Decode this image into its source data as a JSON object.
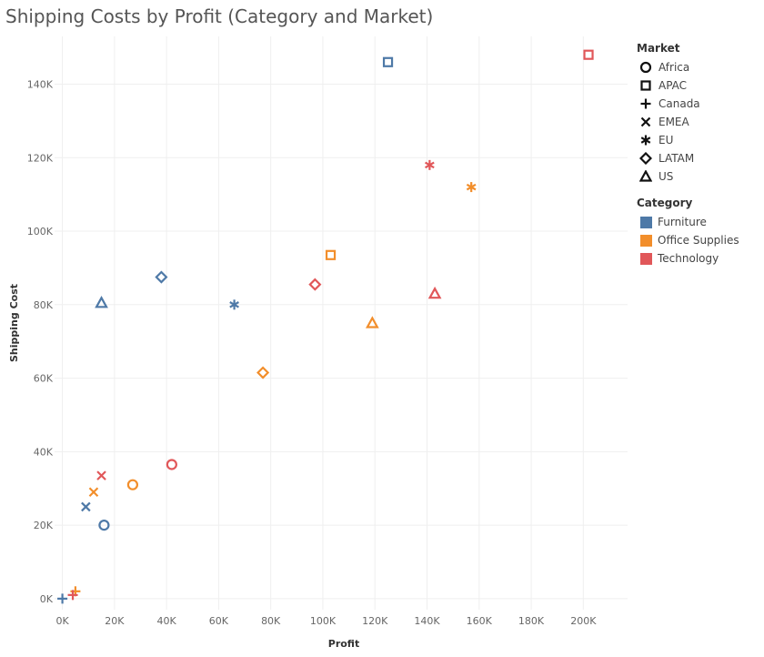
{
  "chart_data": {
    "type": "scatter",
    "title": "Shipping Costs by Profit (Category and Market)",
    "xlabel": "Profit",
    "ylabel": "Shipping Cost",
    "xlim": [
      -3000,
      217000
    ],
    "ylim": [
      -3000,
      153000
    ],
    "xticks": [
      0,
      20000,
      40000,
      60000,
      80000,
      100000,
      120000,
      140000,
      160000,
      180000,
      200000
    ],
    "xtick_labels": [
      "0K",
      "20K",
      "40K",
      "60K",
      "80K",
      "100K",
      "120K",
      "140K",
      "160K",
      "180K",
      "200K"
    ],
    "yticks": [
      0,
      20000,
      40000,
      60000,
      80000,
      100000,
      120000,
      140000
    ],
    "ytick_labels": [
      "0K",
      "20K",
      "40K",
      "60K",
      "80K",
      "100K",
      "120K",
      "140K"
    ],
    "grid": true,
    "legend_placement": "right",
    "shape_legend": {
      "title": "Market",
      "items": [
        {
          "label": "Africa",
          "shape": "circle"
        },
        {
          "label": "APAC",
          "shape": "square"
        },
        {
          "label": "Canada",
          "shape": "plus"
        },
        {
          "label": "EMEA",
          "shape": "x"
        },
        {
          "label": "EU",
          "shape": "asterisk"
        },
        {
          "label": "LATAM",
          "shape": "diamond"
        },
        {
          "label": "US",
          "shape": "triangle"
        }
      ]
    },
    "color_legend": {
      "title": "Category",
      "items": [
        {
          "label": "Furniture",
          "color": "#4e79a7"
        },
        {
          "label": "Office Supplies",
          "color": "#f28e2b"
        },
        {
          "label": "Technology",
          "color": "#e15759"
        }
      ]
    },
    "points": [
      {
        "category": "Furniture",
        "market": "Africa",
        "x": 16000,
        "y": 20000
      },
      {
        "category": "Furniture",
        "market": "APAC",
        "x": 125000,
        "y": 146000
      },
      {
        "category": "Furniture",
        "market": "Canada",
        "x": 0,
        "y": 0
      },
      {
        "category": "Furniture",
        "market": "EMEA",
        "x": 9000,
        "y": 25000
      },
      {
        "category": "Furniture",
        "market": "EU",
        "x": 66000,
        "y": 80000
      },
      {
        "category": "Furniture",
        "market": "LATAM",
        "x": 38000,
        "y": 87500
      },
      {
        "category": "Furniture",
        "market": "US",
        "x": 15000,
        "y": 80500
      },
      {
        "category": "Office Supplies",
        "market": "Africa",
        "x": 27000,
        "y": 31000
      },
      {
        "category": "Office Supplies",
        "market": "APAC",
        "x": 103000,
        "y": 93500
      },
      {
        "category": "Office Supplies",
        "market": "Canada",
        "x": 5000,
        "y": 2000
      },
      {
        "category": "Office Supplies",
        "market": "EMEA",
        "x": 12000,
        "y": 29000
      },
      {
        "category": "Office Supplies",
        "market": "EU",
        "x": 157000,
        "y": 112000
      },
      {
        "category": "Office Supplies",
        "market": "LATAM",
        "x": 77000,
        "y": 61500
      },
      {
        "category": "Office Supplies",
        "market": "US",
        "x": 119000,
        "y": 75000
      },
      {
        "category": "Technology",
        "market": "Africa",
        "x": 42000,
        "y": 36500
      },
      {
        "category": "Technology",
        "market": "APAC",
        "x": 202000,
        "y": 148000
      },
      {
        "category": "Technology",
        "market": "Canada",
        "x": 4000,
        "y": 1000
      },
      {
        "category": "Technology",
        "market": "EMEA",
        "x": 15000,
        "y": 33500
      },
      {
        "category": "Technology",
        "market": "EU",
        "x": 141000,
        "y": 118000
      },
      {
        "category": "Technology",
        "market": "LATAM",
        "x": 97000,
        "y": 85500
      },
      {
        "category": "Technology",
        "market": "US",
        "x": 143000,
        "y": 83000
      }
    ]
  }
}
